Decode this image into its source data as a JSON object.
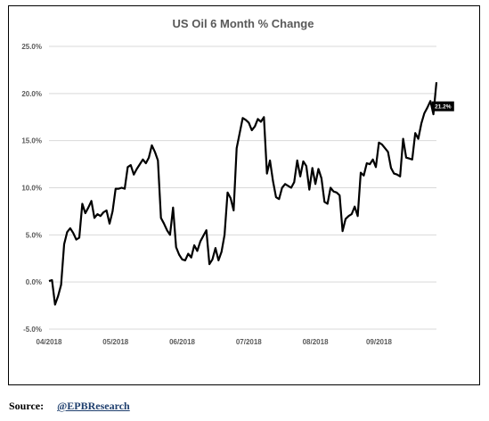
{
  "chart_data": {
    "type": "line",
    "title": "US Oil 6 Month % Change",
    "xlabel": "",
    "ylabel": "",
    "ylim": [
      -5,
      25
    ],
    "yticks": [
      "-5.0%",
      "0.0%",
      "5.0%",
      "10.0%",
      "15.0%",
      "20.0%",
      "25.0%"
    ],
    "ytick_values": [
      -5,
      0,
      5,
      10,
      15,
      20,
      25
    ],
    "xticks": [
      "04/2018",
      "05/2018",
      "06/2018",
      "07/2018",
      "08/2018",
      "09/2018"
    ],
    "grid": true,
    "legend": false,
    "line_color": "#000000",
    "grid_color": "#d9d9d9",
    "series": [
      {
        "values": [
          0.1,
          0.2,
          -2.4,
          -1.5,
          -0.3,
          4.0,
          5.3,
          5.7,
          5.2,
          4.5,
          4.7,
          8.3,
          7.3,
          7.9,
          8.6,
          6.8,
          7.2,
          7.0,
          7.4,
          7.6,
          6.2,
          7.5,
          9.9,
          9.9,
          10.0,
          9.9,
          12.2,
          12.4,
          11.4,
          12.0,
          12.5,
          13.0,
          12.6,
          13.2,
          14.5,
          13.8,
          12.9,
          6.8,
          6.2,
          5.5,
          5.0,
          7.9,
          3.7,
          2.9,
          2.4,
          2.3,
          3.0,
          2.6,
          3.9,
          3.3,
          4.3,
          4.9,
          5.5,
          1.9,
          2.4,
          3.6,
          2.3,
          3.2,
          5.0,
          9.5,
          8.9,
          7.6,
          14.2,
          15.8,
          17.4,
          17.2,
          16.9,
          16.1,
          16.5,
          17.3,
          17.0,
          17.5,
          11.5,
          12.9,
          10.7,
          9.0,
          8.8,
          10.0,
          10.4,
          10.2,
          10.0,
          10.6,
          12.9,
          11.2,
          12.8,
          12.3,
          9.8,
          12.1,
          10.4,
          12.0,
          11.0,
          8.5,
          8.3,
          10.0,
          9.6,
          9.5,
          9.2,
          5.4,
          6.7,
          7.0,
          7.2,
          8.0,
          7.0,
          11.6,
          11.3,
          12.6,
          12.5,
          13.0,
          12.2,
          14.8,
          14.6,
          14.2,
          13.8,
          12.1,
          11.5,
          11.4,
          11.2,
          15.2,
          13.2,
          13.1,
          13.0,
          15.8,
          15.2,
          16.8,
          17.9,
          18.5,
          19.2,
          17.8,
          21.2
        ]
      }
    ],
    "x_tick_indices": [
      0,
      22,
      44,
      66,
      88,
      109
    ],
    "annotations": [
      {
        "text": "21.2%",
        "at_index": 125
      }
    ]
  },
  "source": {
    "label": "Source:",
    "handle": "@EPBResearch"
  }
}
